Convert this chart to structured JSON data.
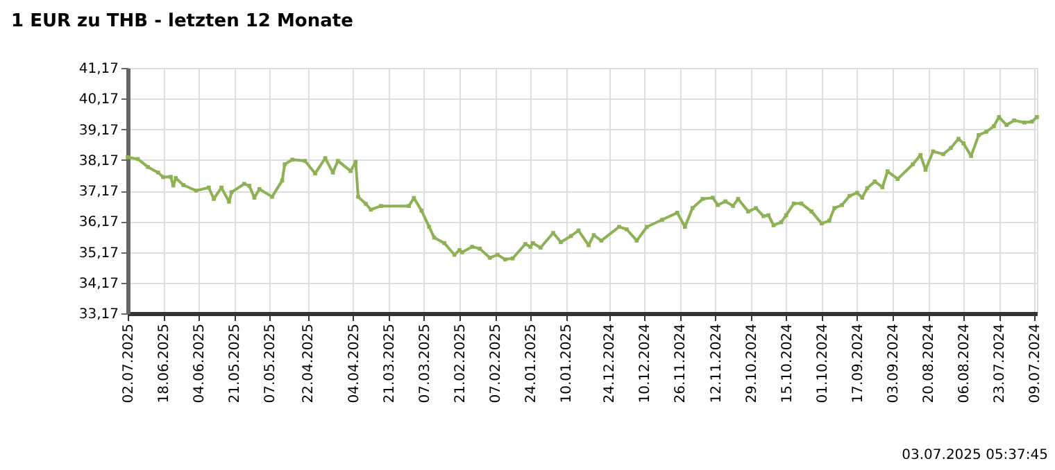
{
  "chart_data": {
    "type": "line",
    "title": "1 EUR zu THB - letzten 12 Monate",
    "annotations": [
      "03.07.2025 05:37:45"
    ],
    "x": [
      "2025-07-02",
      "2025-06-28",
      "2025-06-24",
      "2025-06-20",
      "2025-06-18",
      "2025-06-15",
      "2025-06-14",
      "2025-06-13",
      "2025-06-10",
      "2025-06-05",
      "2025-05-31",
      "2025-05-29",
      "2025-05-26",
      "2025-05-23",
      "2025-05-22",
      "2025-05-17",
      "2025-05-15",
      "2025-05-13",
      "2025-05-11",
      "2025-05-06",
      "2025-05-02",
      "2025-05-01",
      "2025-04-28",
      "2025-04-23",
      "2025-04-19",
      "2025-04-15",
      "2025-04-12",
      "2025-04-10",
      "2025-04-05",
      "2025-04-03",
      "2025-04-02",
      "2025-03-30",
      "2025-03-28",
      "2025-03-24",
      "2025-03-13",
      "2025-03-11",
      "2025-03-08",
      "2025-03-05",
      "2025-03-03",
      "2025-02-27",
      "2025-02-23",
      "2025-02-21",
      "2025-02-20",
      "2025-02-16",
      "2025-02-13",
      "2025-02-09",
      "2025-02-06",
      "2025-02-03",
      "2025-01-31",
      "2025-01-26",
      "2025-01-24",
      "2025-01-23",
      "2025-01-20",
      "2025-01-15",
      "2025-01-12",
      "2025-01-08",
      "2025-01-05",
      "2025-01-01",
      "2024-12-30",
      "2024-12-27",
      "2024-12-20",
      "2024-12-17",
      "2024-12-13",
      "2024-12-09",
      "2024-12-03",
      "2024-11-27",
      "2024-11-24",
      "2024-11-21",
      "2024-11-17",
      "2024-11-13",
      "2024-11-11",
      "2024-11-08",
      "2024-11-05",
      "2024-11-03",
      "2024-10-30",
      "2024-10-27",
      "2024-10-24",
      "2024-10-22",
      "2024-10-20",
      "2024-10-17",
      "2024-10-15",
      "2024-10-12",
      "2024-10-09",
      "2024-10-05",
      "2024-10-01",
      "2024-09-28",
      "2024-09-26",
      "2024-09-23",
      "2024-09-20",
      "2024-09-17",
      "2024-09-15",
      "2024-09-13",
      "2024-09-10",
      "2024-09-07",
      "2024-09-05",
      "2024-09-01",
      "2024-08-26",
      "2024-08-23",
      "2024-08-21",
      "2024-08-18",
      "2024-08-14",
      "2024-08-11",
      "2024-08-08",
      "2024-08-06",
      "2024-08-03",
      "2024-07-31",
      "2024-07-28",
      "2024-07-25",
      "2024-07-23",
      "2024-07-20",
      "2024-07-17",
      "2024-07-13",
      "2024-07-10",
      "2024-07-08"
    ],
    "series": [
      {
        "color": "#8db255",
        "values": [
          38.26,
          38.2,
          37.94,
          37.76,
          37.61,
          37.62,
          37.34,
          37.58,
          37.35,
          37.17,
          37.27,
          36.9,
          37.27,
          36.81,
          37.12,
          37.39,
          37.33,
          36.94,
          37.22,
          36.97,
          37.5,
          38.03,
          38.18,
          38.14,
          37.73,
          38.23,
          37.76,
          38.14,
          37.81,
          38.11,
          36.97,
          36.74,
          36.55,
          36.67,
          36.67,
          36.93,
          36.52,
          35.99,
          35.64,
          35.46,
          35.08,
          35.23,
          35.16,
          35.34,
          35.28,
          34.98,
          35.08,
          34.93,
          34.96,
          35.43,
          35.34,
          35.46,
          35.31,
          35.79,
          35.49,
          35.69,
          35.87,
          35.39,
          35.72,
          35.54,
          35.99,
          35.91,
          35.54,
          35.99,
          36.22,
          36.45,
          35.99,
          36.6,
          36.9,
          36.94,
          36.7,
          36.82,
          36.67,
          36.9,
          36.49,
          36.6,
          36.34,
          36.37,
          36.04,
          36.14,
          36.37,
          36.75,
          36.75,
          36.49,
          36.1,
          36.19,
          36.6,
          36.7,
          37.0,
          37.1,
          36.94,
          37.25,
          37.47,
          37.28,
          37.8,
          37.55,
          38.03,
          38.33,
          37.85,
          38.45,
          38.36,
          38.56,
          38.86,
          38.71,
          38.3,
          38.98,
          39.09,
          39.27,
          39.57,
          39.31,
          39.46,
          39.39,
          39.42,
          39.57
        ]
      }
    ],
    "xlim": [
      "2025-07-02",
      "2024-07-08"
    ],
    "xticks": [
      {
        "value": "2025-07-02",
        "label": "02.07.2025"
      },
      {
        "value": "2025-06-18",
        "label": "18.06.2025"
      },
      {
        "value": "2025-06-04",
        "label": "04.06.2025"
      },
      {
        "value": "2025-05-21",
        "label": "21.05.2025"
      },
      {
        "value": "2025-05-07",
        "label": "07.05.2025"
      },
      {
        "value": "2025-04-22",
        "label": "22.04.2025"
      },
      {
        "value": "2025-04-04",
        "label": "04.04.2025"
      },
      {
        "value": "2025-03-21",
        "label": "21.03.2025"
      },
      {
        "value": "2025-03-07",
        "label": "07.03.2025"
      },
      {
        "value": "2025-02-21",
        "label": "21.02.2025"
      },
      {
        "value": "2025-02-07",
        "label": "07.02.2025"
      },
      {
        "value": "2025-01-24",
        "label": "24.01.2025"
      },
      {
        "value": "2025-01-10",
        "label": "10.01.2025"
      },
      {
        "value": "2024-12-24",
        "label": "24.12.2024"
      },
      {
        "value": "2024-12-10",
        "label": "10.12.2024"
      },
      {
        "value": "2024-11-26",
        "label": "26.11.2024"
      },
      {
        "value": "2024-11-12",
        "label": "12.11.2024"
      },
      {
        "value": "2024-10-29",
        "label": "29.10.2024"
      },
      {
        "value": "2024-10-15",
        "label": "15.10.2024"
      },
      {
        "value": "2024-10-01",
        "label": "01.10.2024"
      },
      {
        "value": "2024-09-17",
        "label": "17.09.2024"
      },
      {
        "value": "2024-09-03",
        "label": "03.09.2024"
      },
      {
        "value": "2024-08-20",
        "label": "20.08.2024"
      },
      {
        "value": "2024-08-06",
        "label": "06.08.2024"
      },
      {
        "value": "2024-07-23",
        "label": "23.07.2024"
      },
      {
        "value": "2024-07-09",
        "label": "09.07.2024"
      }
    ],
    "ylim": [
      33.17,
      41.17
    ],
    "yticks": [
      {
        "value": 33.17,
        "label": "33,17"
      },
      {
        "value": 34.17,
        "label": "34,17"
      },
      {
        "value": 35.17,
        "label": "35,17"
      },
      {
        "value": 36.17,
        "label": "36,17"
      },
      {
        "value": 37.17,
        "label": "37,17"
      },
      {
        "value": 38.17,
        "label": "38,17"
      },
      {
        "value": 39.17,
        "label": "39,17"
      },
      {
        "value": 40.17,
        "label": "40,17"
      },
      {
        "value": 41.17,
        "label": "41,17"
      }
    ],
    "grid": true,
    "legend": false,
    "marker": "square",
    "line_style": "solid"
  }
}
